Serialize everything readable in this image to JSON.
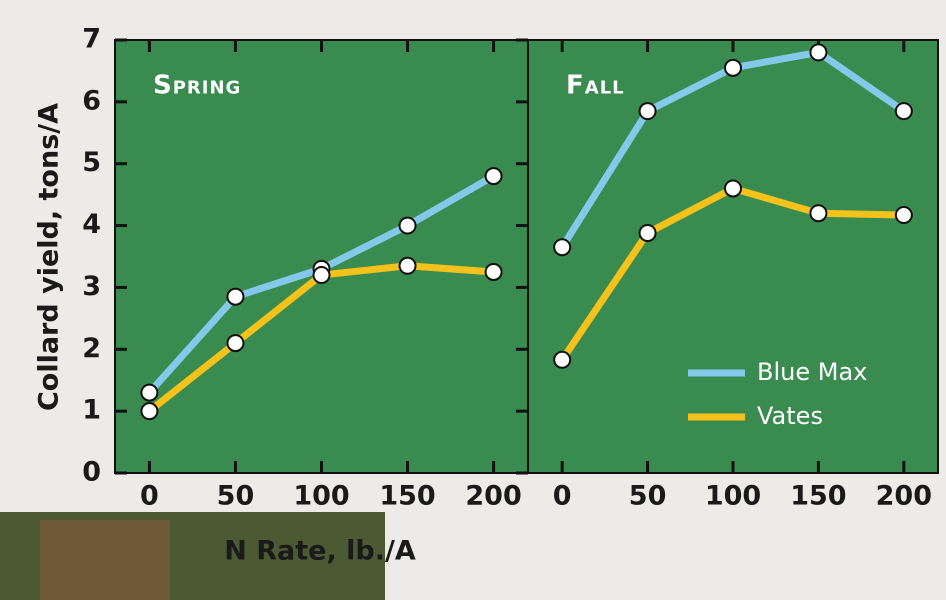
{
  "chart_data": [
    {
      "type": "line",
      "title": "Spring",
      "y_label": "Collard yield, tons/A",
      "x_label": "N Rate, lb./A",
      "x": [
        0,
        50,
        100,
        150,
        200
      ],
      "series": [
        {
          "color": "#86c8ea",
          "values": [
            1.3,
            2.85,
            3.3,
            4.0,
            4.8
          ]
        },
        {
          "color": "#f4c21a",
          "values": [
            1.0,
            2.1,
            3.2,
            3.35,
            3.25
          ]
        }
      ],
      "xlim": [
        -20,
        220
      ],
      "xticks": [
        0,
        50,
        100,
        150,
        200
      ],
      "ylim": [
        0,
        7
      ],
      "yticks": [
        0,
        1,
        2,
        3,
        4,
        5,
        6,
        7
      ]
    },
    {
      "type": "line",
      "title": "Fall",
      "x": [
        0,
        50,
        100,
        150,
        200
      ],
      "series": [
        {
          "name": "Blue Max",
          "color": "#86c8ea",
          "values": [
            3.65,
            5.85,
            6.55,
            6.8,
            5.85
          ]
        },
        {
          "name": "Vates",
          "color": "#f4c21a",
          "values": [
            1.83,
            3.88,
            4.6,
            4.2,
            4.17
          ]
        }
      ],
      "xlim": [
        -20,
        220
      ],
      "xticks": [
        0,
        50,
        100,
        150,
        200
      ],
      "ylim": [
        0,
        7
      ],
      "legend": "lower right"
    }
  ]
}
